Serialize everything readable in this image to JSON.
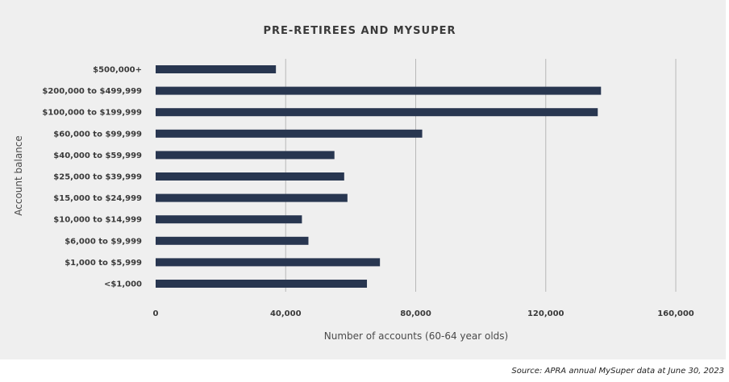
{
  "chart_data": {
    "type": "bar",
    "orientation": "horizontal",
    "title": "PRE-RETIREES AND MYSUPER",
    "xlabel": "Number of accounts (60-64 year olds)",
    "ylabel": "Account balance",
    "categories": [
      "$500,000+",
      "$200,000 to $499,999",
      "$100,000 to $199,999",
      "$60,000 to $99,999",
      "$40,000 to $59,999",
      "$25,000 to $39,999",
      "$15,000 to $24,999",
      "$10,000 to $14,999",
      "$6,000 to $9,999",
      "$1,000 to $5,999",
      "<$1,000"
    ],
    "values": [
      37000,
      137000,
      136000,
      82000,
      55000,
      58000,
      59000,
      45000,
      47000,
      69000,
      65000
    ],
    "xlim": [
      0,
      160000
    ],
    "xticks": [
      0,
      40000,
      80000,
      120000,
      160000
    ],
    "xtick_labels": [
      "0",
      "40,000",
      "80,000",
      "120,000",
      "160,000"
    ],
    "grid": "vertical",
    "bar_color": "#283650",
    "grid_color": "#b8b8b8"
  },
  "source": "Source: APRA annual MySuper data at June 30, 2023"
}
